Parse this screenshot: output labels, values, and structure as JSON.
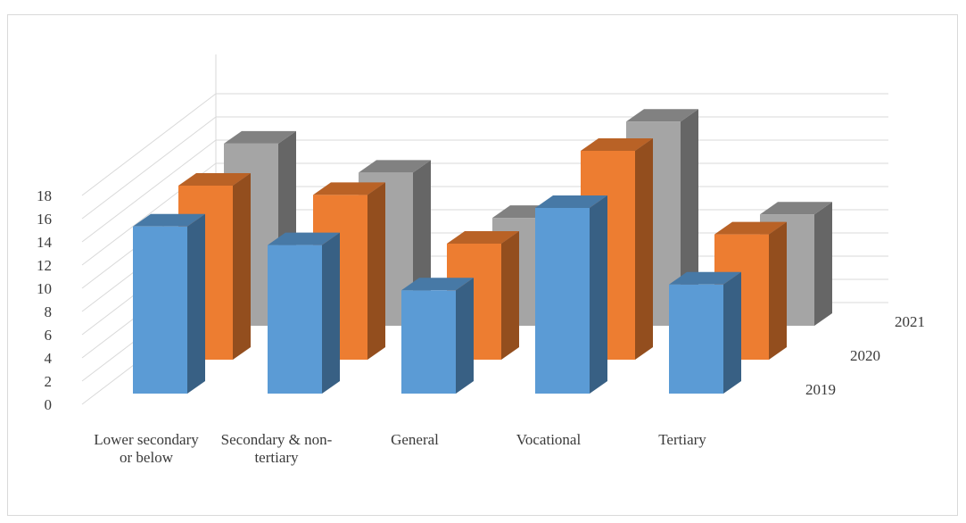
{
  "chart_data": {
    "type": "bar",
    "title": "",
    "xlabel": "",
    "ylabel": "",
    "categories": [
      "Lower secondary or below",
      "Secondary & non-tertiary",
      "General",
      "Vocational",
      "Tertiary"
    ],
    "series": [
      {
        "name": "2019",
        "values": [
          14.4,
          12.8,
          8.9,
          16.0,
          9.4
        ],
        "color": "#5b9bd5"
      },
      {
        "name": "2020",
        "values": [
          15.0,
          14.2,
          10.0,
          18.0,
          10.8
        ],
        "color": "#ed7d31"
      },
      {
        "name": "2021",
        "values": [
          15.7,
          13.2,
          9.3,
          17.6,
          9.6
        ],
        "color": "#a5a5a5"
      }
    ],
    "ylim": [
      0,
      18
    ],
    "yticks": [
      "0",
      "2",
      "4",
      "6",
      "8",
      "10",
      "12",
      "14",
      "16",
      "18"
    ],
    "grid": true,
    "legend": "depth-axis-right"
  }
}
